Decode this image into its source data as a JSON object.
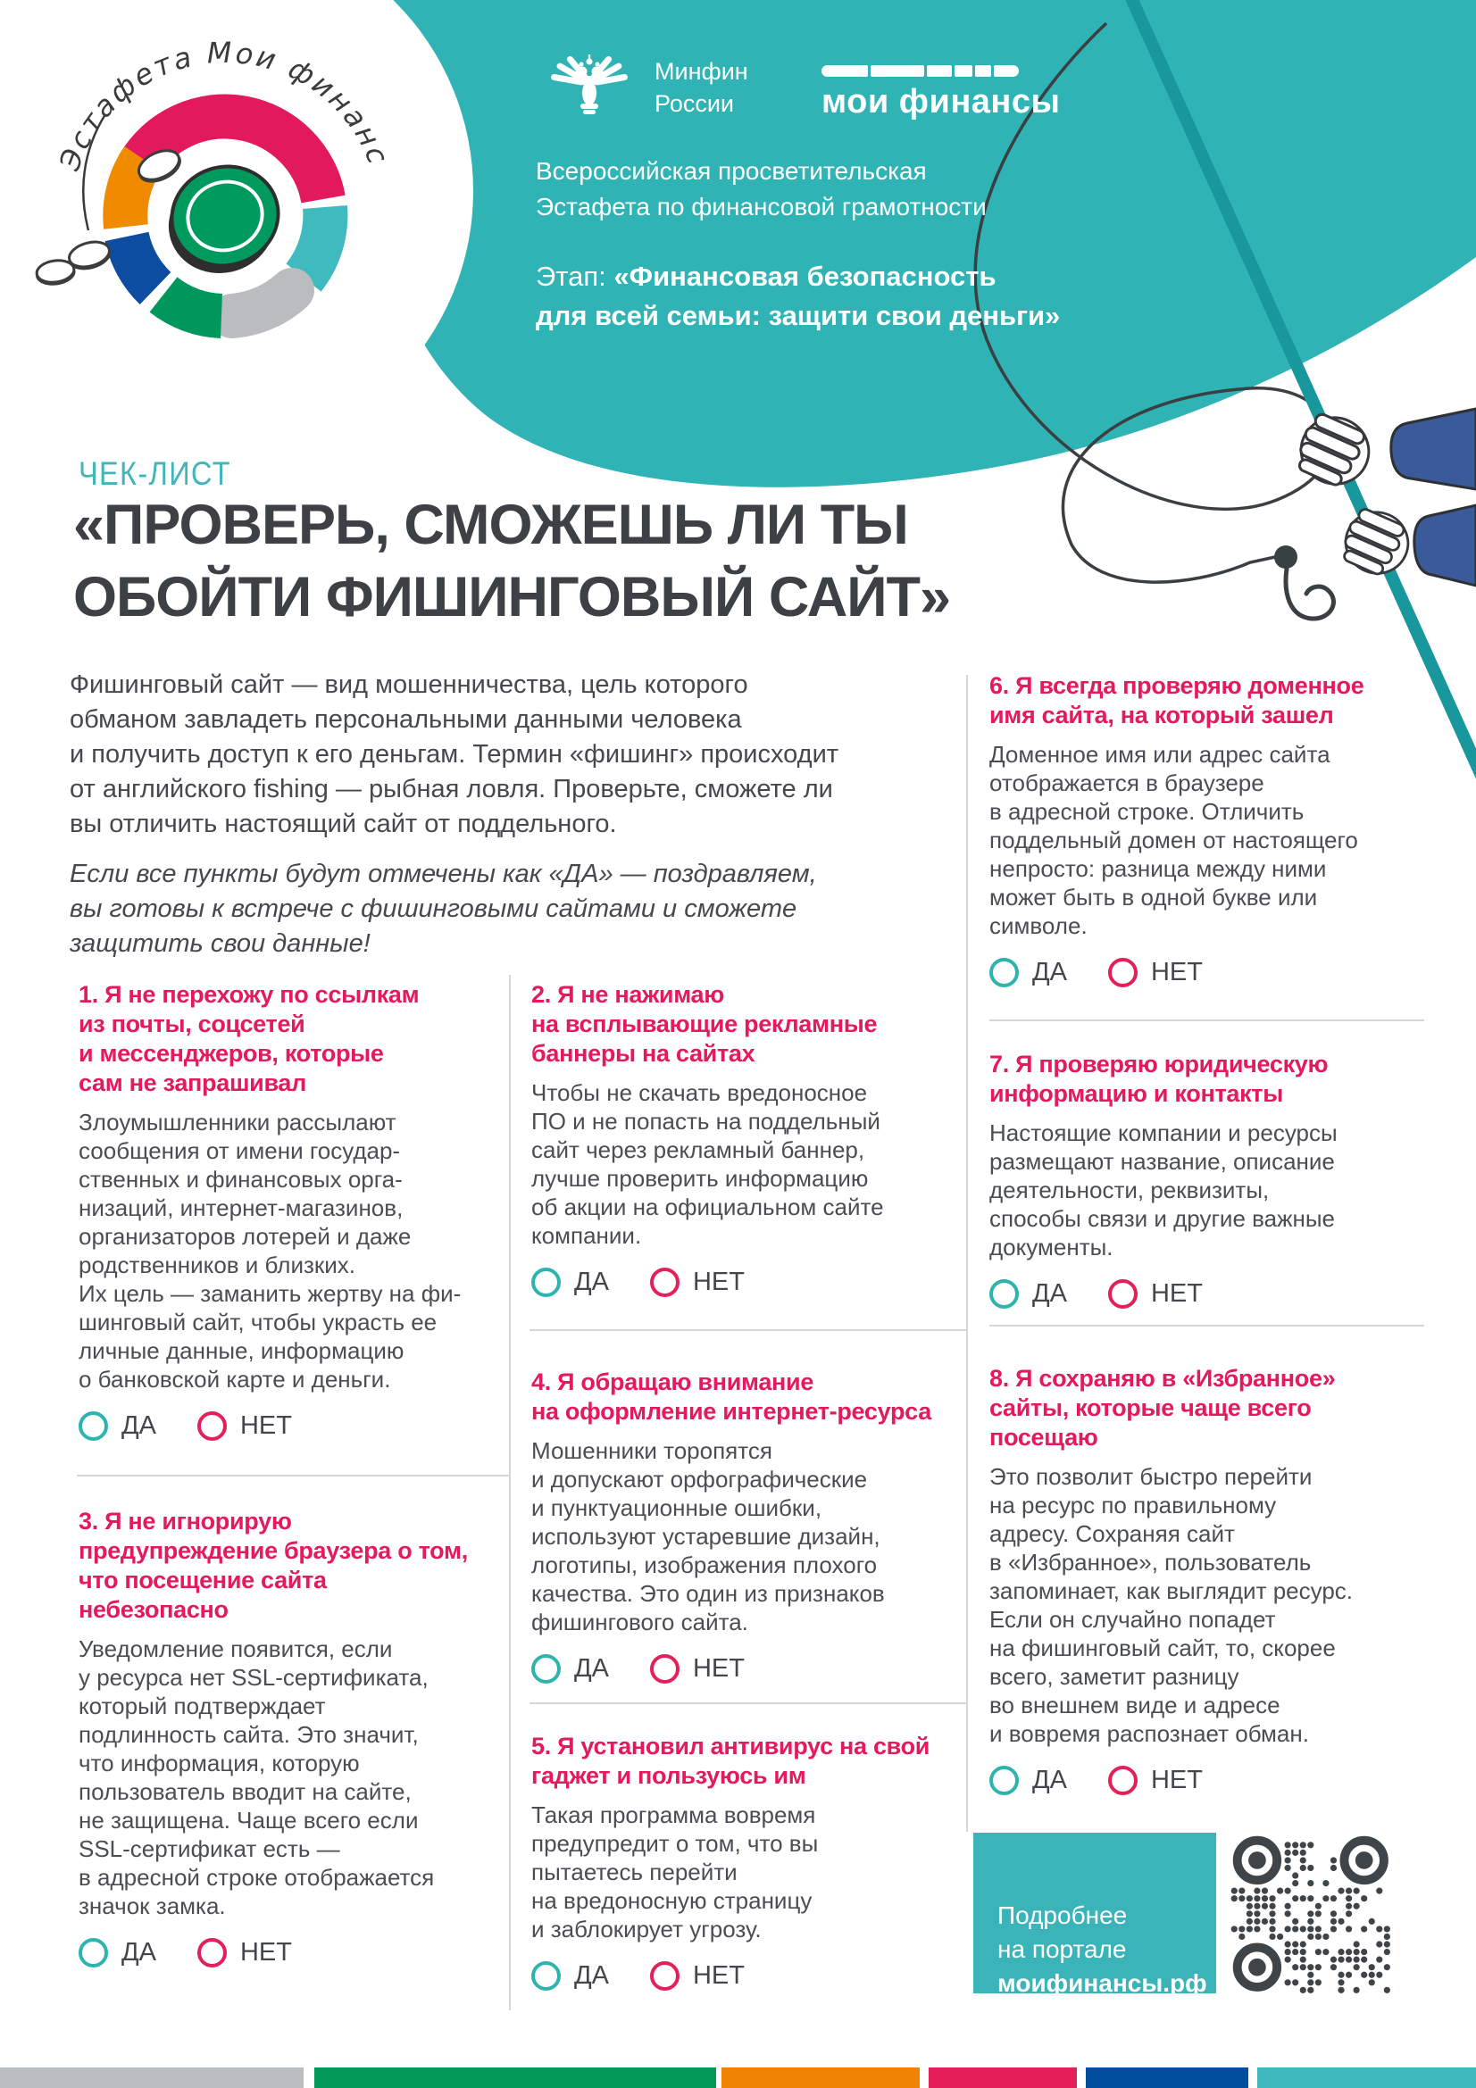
{
  "header": {
    "logo_arc_text": "Эстафета Мои финансы",
    "minfin": {
      "line1": "Минфин",
      "line2": "России"
    },
    "mf_logo_text": "мои финансы",
    "program": "Всероссийская просветительская\nЭстафета по финансовой грамотности",
    "stage_prefix": "Этап:",
    "stage_bold": "«Финансовая безопасность\nдля всей семьи: защити свои деньги»"
  },
  "title": {
    "kicker": "ЧЕК-ЛИСТ",
    "main": "«ПРОВЕРЬ, СМОЖЕШЬ ЛИ ТЫ\nОБОЙТИ ФИШИНГОВЫЙ САЙТ»"
  },
  "intro": {
    "text": "Фишинговый сайт — вид мошенничества, цель которого\nобманом завладеть персональными данными человека\nи получить доступ к его деньгам. Термин «фишинг» происходит\nот английского fishing — рыбная ловля. Проверьте, сможете ли\nвы отличить настоящий сайт от поддельного.",
    "italic": "Если все пункты будут отмечены как «ДА» — поздравляем,\nвы готовы к встрече с фишинговыми сайтами и сможете\nзащитить свои данные!"
  },
  "checklist": {
    "yes_label": "ДА",
    "no_label": "НЕТ",
    "items": [
      {
        "title": "1. Я не перехожу по ссылкам\nиз почты, соцсетей\nи мессенджеров, которые\nсам не запрашивал",
        "body": "Злоумышленники рассылают\nсообщения от имени государ-\nственных и финансовых орга-\nнизаций, интернет-магазинов,\nорганизаторов лотерей и даже\nродственников и близких.\nИх цель — заманить жертву на фи-\nшинговый сайт, чтобы украсть ее\nличные данные, информацию\nо банковской карте и деньги."
      },
      {
        "title": "2. Я не нажимаю\nна всплывающие рекламные\nбаннеры на сайтах",
        "body": "Чтобы не скачать вредоносное\nПО и не попасть на поддельный\nсайт через рекламный баннер,\nлучше проверить информацию\nоб акции на официальном сайте\nкомпании."
      },
      {
        "title": "3. Я не игнорирую\nпредупреждение браузера о том,\nчто посещение сайта\nнебезопасно",
        "body": "Уведомление появится, если\nу ресурса нет SSL-сертификата,\nкоторый подтверждает\nподлинность сайта. Это значит,\nчто информация, которую\nпользователь вводит на сайте,\nне защищена. Чаще всего если\nSSL-сертификат есть —\nв адресной строке отображается\nзначок замка."
      },
      {
        "title": "4. Я обращаю внимание\nна оформление интернет-ресурса",
        "body": "Мошенники торопятся\nи допускают орфографические\nи пунктуационные ошибки,\nиспользуют устаревшие дизайн,\nлоготипы, изображения плохого\nкачества. Это один из признаков\nфишингового сайта."
      },
      {
        "title": "5. Я установил антивирус на свой\nгаджет и пользуюсь им",
        "body": "Такая программа вовремя\nпредупредит о том, что вы\nпытаетесь перейти\nна вредоносную страницу\nи заблокирует угрозу."
      },
      {
        "title": "6. Я всегда проверяю доменное\nимя сайта, на который зашел",
        "body": "Доменное имя или адрес сайта\nотображается в браузере\nв адресной строке. Отличить\nподдельный домен от настоящего\nнепросто: разница между ними\nможет быть в одной букве или\nсимволе."
      },
      {
        "title": "7. Я проверяю юридическую\nинформацию и контакты",
        "body": "Настоящие компании и ресурсы\nразмещают название, описание\nдеятельности, реквизиты,\nспособы связи и другие важные\nдокументы."
      },
      {
        "title": "8. Я сохраняю в «Избранное»\nсайты, которые чаще всего\nпосещаю",
        "body": "Это позволит быстро перейти\nна ресурс по правильному\nадресу. Сохраняя сайт\nв «Избранное», пользователь\nзапоминает, как выглядит ресурс.\nЕсли он случайно попадет\nна фишинговый сайт, то, скорее\nвсего, заметит разницу\nво внешнем виде и адресе\nи вовремя распознает обман."
      }
    ]
  },
  "footer": {
    "more_text": "Подробнее\nна портале",
    "more_bold": "моифинансы.рф"
  },
  "colors": {
    "teal_header": "#2fb3b5",
    "teal_accent": "#41b6ba",
    "heading_pink": "#e5195e",
    "yes_circle": "#2db4af",
    "no_circle": "#e3205a",
    "body_text": "#4a4e53",
    "title_text": "#3d4044",
    "stripes": [
      "#babec1",
      "#009958",
      "#ef8200",
      "#e31e58",
      "#004f9d",
      "#3fb9bc"
    ]
  }
}
